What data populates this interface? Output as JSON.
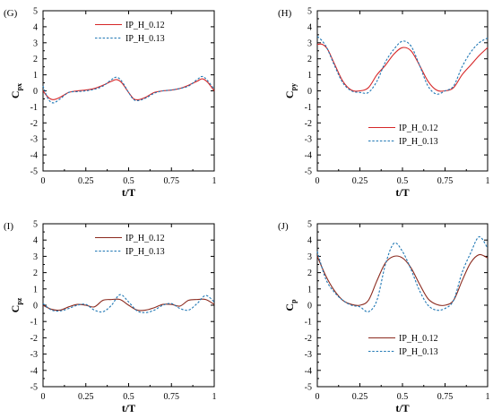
{
  "chart_data": [
    {
      "type": "line",
      "panel_label": "(G)",
      "ylabel_main": "C",
      "ylabel_sub": "px",
      "xlabel": "t/T",
      "xlim": [
        0,
        1
      ],
      "ylim": [
        -5,
        5
      ],
      "xticks": [
        "0",
        "0.25",
        "0.5",
        "0.75",
        "1"
      ],
      "yticks": [
        "-5",
        "-4",
        "-3",
        "-2",
        "-1",
        "0",
        "1",
        "2",
        "3",
        "4",
        "5"
      ],
      "legend_position": "top-right",
      "series": [
        {
          "name": "IP_H_0.12",
          "color": "#d62728",
          "dash": "solid",
          "x": [
            0,
            0.03,
            0.06,
            0.1,
            0.15,
            0.2,
            0.25,
            0.3,
            0.35,
            0.4,
            0.43,
            0.46,
            0.5,
            0.53,
            0.56,
            0.6,
            0.65,
            0.7,
            0.75,
            0.8,
            0.85,
            0.9,
            0.93,
            0.96,
            1
          ],
          "y": [
            0,
            -0.4,
            -0.55,
            -0.4,
            -0.1,
            0,
            0.05,
            0.15,
            0.35,
            0.6,
            0.7,
            0.5,
            -0.1,
            -0.5,
            -0.55,
            -0.4,
            -0.1,
            0,
            0.05,
            0.15,
            0.35,
            0.6,
            0.75,
            0.55,
            0
          ]
        },
        {
          "name": "IP_H_0.13",
          "color": "#1f77b4",
          "dash": "dotted",
          "x": [
            0,
            0.03,
            0.06,
            0.1,
            0.15,
            0.2,
            0.25,
            0.3,
            0.35,
            0.4,
            0.43,
            0.46,
            0.5,
            0.53,
            0.56,
            0.6,
            0.65,
            0.7,
            0.75,
            0.8,
            0.85,
            0.9,
            0.93,
            0.96,
            1
          ],
          "y": [
            0.3,
            -0.5,
            -0.75,
            -0.5,
            -0.1,
            -0.05,
            0,
            0.1,
            0.3,
            0.7,
            0.85,
            0.6,
            -0.1,
            -0.55,
            -0.6,
            -0.45,
            -0.15,
            0,
            0.05,
            0.15,
            0.3,
            0.7,
            0.9,
            0.65,
            0.1
          ]
        }
      ]
    },
    {
      "type": "line",
      "panel_label": "(H)",
      "ylabel_main": "C",
      "ylabel_sub": "py",
      "xlabel": "t/T",
      "xlim": [
        0,
        1
      ],
      "ylim": [
        -5,
        5
      ],
      "xticks": [
        "0",
        "0.25",
        "0.5",
        "0.75",
        "1"
      ],
      "yticks": [
        "-5",
        "-4",
        "-3",
        "-2",
        "-1",
        "0",
        "1",
        "2",
        "3",
        "4",
        "5"
      ],
      "legend_position": "middle-right",
      "series": [
        {
          "name": "IP_H_0.12",
          "color": "#d62728",
          "dash": "solid",
          "x": [
            0,
            0.03,
            0.06,
            0.1,
            0.15,
            0.2,
            0.25,
            0.3,
            0.35,
            0.4,
            0.45,
            0.5,
            0.55,
            0.6,
            0.65,
            0.7,
            0.75,
            0.8,
            0.85,
            0.9,
            0.95,
            1
          ],
          "y": [
            2.9,
            2.9,
            2.6,
            1.7,
            0.6,
            0.05,
            0,
            0.2,
            1.0,
            1.6,
            2.3,
            2.7,
            2.5,
            1.6,
            0.6,
            0.05,
            0,
            0.2,
            1.0,
            1.6,
            2.2,
            2.7
          ]
        },
        {
          "name": "IP_H_0.13",
          "color": "#1f77b4",
          "dash": "dotted",
          "x": [
            0,
            0.03,
            0.06,
            0.1,
            0.15,
            0.2,
            0.25,
            0.3,
            0.35,
            0.4,
            0.45,
            0.5,
            0.55,
            0.6,
            0.65,
            0.7,
            0.75,
            0.8,
            0.85,
            0.9,
            0.95,
            1
          ],
          "y": [
            3.4,
            3.1,
            2.6,
            1.6,
            0.5,
            0,
            -0.1,
            -0.1,
            0.6,
            1.8,
            2.6,
            3.1,
            2.8,
            1.6,
            0.3,
            -0.2,
            0,
            0.3,
            1.5,
            2.4,
            3.0,
            3.3
          ]
        }
      ]
    },
    {
      "type": "line",
      "panel_label": "(I)",
      "ylabel_main": "C",
      "ylabel_sub": "pz",
      "xlabel": "t/T",
      "xlim": [
        0,
        1
      ],
      "ylim": [
        -5,
        5
      ],
      "xticks": [
        "0",
        "0.25",
        "0.5",
        "0.75",
        "1"
      ],
      "yticks": [
        "-5",
        "-4",
        "-3",
        "-2",
        "-1",
        "0",
        "1",
        "2",
        "3",
        "4",
        "5"
      ],
      "legend_position": "top-right",
      "series": [
        {
          "name": "IP_H_0.12",
          "color": "#8b2a1e",
          "dash": "solid",
          "x": [
            0,
            0.05,
            0.1,
            0.15,
            0.2,
            0.25,
            0.3,
            0.35,
            0.4,
            0.45,
            0.5,
            0.55,
            0.6,
            0.65,
            0.7,
            0.75,
            0.8,
            0.85,
            0.9,
            0.95,
            1
          ],
          "y": [
            0,
            -0.25,
            -0.3,
            -0.1,
            0.05,
            0,
            -0.1,
            0.3,
            0.35,
            0.35,
            0,
            -0.3,
            -0.3,
            -0.15,
            0.05,
            0.05,
            -0.05,
            0.3,
            0.35,
            0.35,
            0.05
          ]
        },
        {
          "name": "IP_H_0.13",
          "color": "#1f77b4",
          "dash": "dotted",
          "x": [
            0,
            0.05,
            0.1,
            0.15,
            0.2,
            0.25,
            0.3,
            0.35,
            0.4,
            0.45,
            0.5,
            0.55,
            0.6,
            0.65,
            0.7,
            0.75,
            0.8,
            0.85,
            0.9,
            0.95,
            1
          ],
          "y": [
            0.1,
            -0.3,
            -0.35,
            -0.2,
            0,
            0.05,
            -0.3,
            -0.4,
            0,
            0.65,
            0.2,
            -0.35,
            -0.45,
            -0.3,
            0,
            0.1,
            -0.2,
            -0.3,
            0.1,
            0.6,
            0.2
          ]
        }
      ]
    },
    {
      "type": "line",
      "panel_label": "(J)",
      "ylabel_main": "C",
      "ylabel_sub": "p",
      "xlabel": "t/T",
      "xlim": [
        0,
        1
      ],
      "ylim": [
        -5,
        5
      ],
      "xticks": [
        "0",
        "0.25",
        "0.5",
        "0.75",
        "1"
      ],
      "yticks": [
        "-5",
        "-4",
        "-3",
        "-2",
        "-1",
        "0",
        "1",
        "2",
        "3",
        "4",
        "5"
      ],
      "legend_position": "bottom-right",
      "series": [
        {
          "name": "IP_H_0.12",
          "color": "#8b2a1e",
          "dash": "solid",
          "x": [
            0,
            0.05,
            0.1,
            0.15,
            0.2,
            0.25,
            0.3,
            0.35,
            0.4,
            0.45,
            0.5,
            0.55,
            0.6,
            0.65,
            0.7,
            0.75,
            0.8,
            0.85,
            0.9,
            0.95,
            1
          ],
          "y": [
            3.0,
            1.8,
            0.9,
            0.3,
            0.05,
            0,
            0.3,
            1.5,
            2.6,
            3.0,
            2.9,
            2.3,
            1.3,
            0.4,
            0.05,
            0,
            0.3,
            1.5,
            2.6,
            3.1,
            2.9
          ]
        },
        {
          "name": "IP_H_0.13",
          "color": "#1f77b4",
          "dash": "dotted",
          "x": [
            0,
            0.05,
            0.1,
            0.15,
            0.2,
            0.25,
            0.3,
            0.35,
            0.4,
            0.45,
            0.5,
            0.55,
            0.6,
            0.65,
            0.7,
            0.75,
            0.8,
            0.85,
            0.9,
            0.95,
            1
          ],
          "y": [
            3.3,
            1.6,
            0.8,
            0.3,
            0,
            -0.1,
            -0.4,
            0.3,
            2.5,
            3.8,
            3.3,
            2.2,
            0.9,
            0,
            -0.3,
            -0.2,
            0.3,
            2.0,
            3.2,
            4.2,
            3.5
          ]
        }
      ]
    }
  ]
}
